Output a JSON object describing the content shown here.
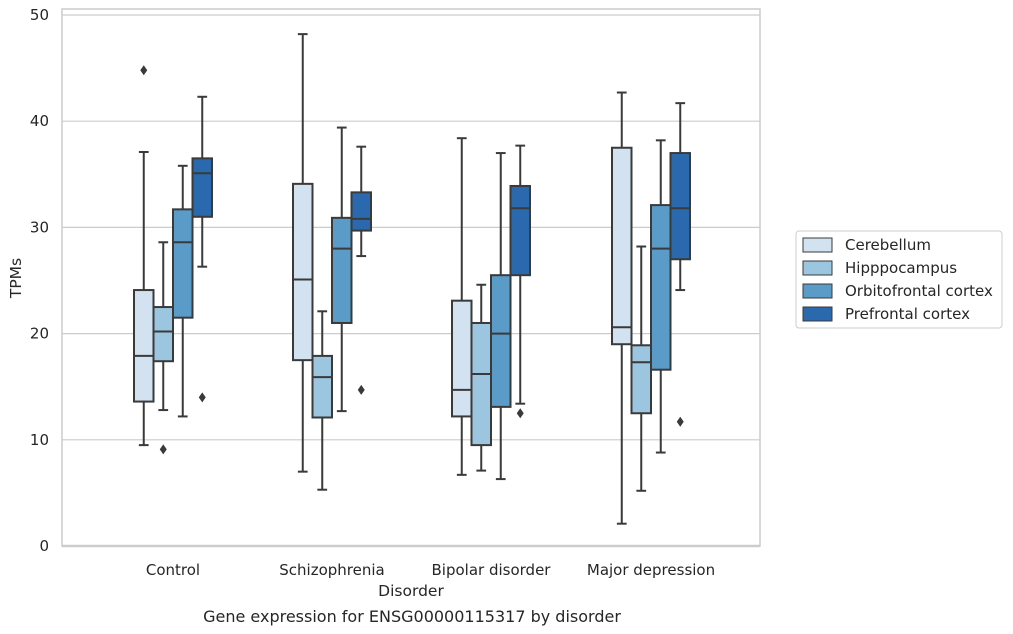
{
  "chart_data": {
    "type": "box",
    "xlabel": "Disorder",
    "ylabel": "TPMs",
    "caption": "Gene expression for ENSG00000115317 by disorder",
    "ylim": [
      0,
      50
    ],
    "yticks": [
      0,
      10,
      20,
      30,
      40,
      50
    ],
    "grid": "horizontal",
    "legend_position": "right",
    "categories": [
      "Control",
      "Schizophrenia",
      "Bipolar disorder",
      "Major depression"
    ],
    "series": [
      {
        "name": "Cerebellum",
        "color": "#d3e2f0",
        "boxes": [
          {
            "min": 9.5,
            "q1": 13.6,
            "median": 17.9,
            "q3": 24.1,
            "max": 37.1,
            "outliers": [
              44.8
            ]
          },
          {
            "min": 7.0,
            "q1": 17.5,
            "median": 25.1,
            "q3": 34.1,
            "max": 48.2,
            "outliers": []
          },
          {
            "min": 6.7,
            "q1": 12.2,
            "median": 14.7,
            "q3": 23.1,
            "max": 38.4,
            "outliers": []
          },
          {
            "min": 2.1,
            "q1": 19.0,
            "median": 20.6,
            "q3": 37.5,
            "max": 42.7,
            "outliers": []
          }
        ]
      },
      {
        "name": "Hipppocampus",
        "color": "#9cc5df",
        "boxes": [
          {
            "min": 12.8,
            "q1": 17.4,
            "median": 20.2,
            "q3": 22.5,
            "max": 28.6,
            "outliers": [
              9.1
            ]
          },
          {
            "min": 5.3,
            "q1": 12.1,
            "median": 15.9,
            "q3": 17.9,
            "max": 22.1,
            "outliers": []
          },
          {
            "min": 7.1,
            "q1": 9.5,
            "median": 16.2,
            "q3": 21.0,
            "max": 24.6,
            "outliers": []
          },
          {
            "min": 5.2,
            "q1": 12.5,
            "median": 17.3,
            "q3": 18.9,
            "max": 28.2,
            "outliers": []
          }
        ]
      },
      {
        "name": "Orbitofrontal cortex",
        "color": "#5b9bc8",
        "boxes": [
          {
            "min": 12.2,
            "q1": 21.5,
            "median": 28.6,
            "q3": 31.7,
            "max": 35.8,
            "outliers": []
          },
          {
            "min": 12.7,
            "q1": 21.0,
            "median": 28.0,
            "q3": 30.9,
            "max": 39.4,
            "outliers": []
          },
          {
            "min": 6.3,
            "q1": 13.1,
            "median": 20.0,
            "q3": 25.5,
            "max": 37.0,
            "outliers": []
          },
          {
            "min": 8.8,
            "q1": 16.6,
            "median": 28.0,
            "q3": 32.1,
            "max": 38.2,
            "outliers": []
          }
        ]
      },
      {
        "name": "Prefrontal cortex",
        "color": "#2a69ad",
        "boxes": [
          {
            "min": 26.3,
            "q1": 31.0,
            "median": 35.1,
            "q3": 36.5,
            "max": 42.3,
            "outliers": [
              14.0
            ]
          },
          {
            "min": 27.3,
            "q1": 29.7,
            "median": 30.8,
            "q3": 33.3,
            "max": 37.6,
            "outliers": [
              14.7
            ]
          },
          {
            "min": 13.4,
            "q1": 25.5,
            "median": 31.8,
            "q3": 33.9,
            "max": 37.7,
            "outliers": [
              12.5
            ]
          },
          {
            "min": 24.1,
            "q1": 27.0,
            "median": 31.8,
            "q3": 37.0,
            "max": 41.7,
            "outliers": [
              11.7
            ]
          }
        ]
      }
    ]
  }
}
